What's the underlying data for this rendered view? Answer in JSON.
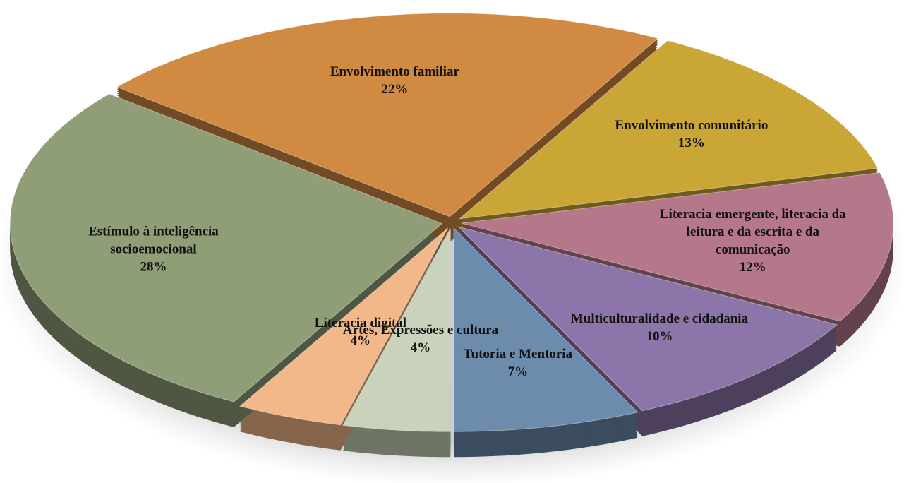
{
  "chart_data": {
    "type": "pie",
    "categories": [
      "Artes, Expressões e cultura",
      "Literacia digital",
      "Estímulo à inteligência socioemocional",
      "Envolvimento familiar",
      "Envolvimento comunitário",
      "Literacia emergente, literacia da leitura e da escrita e da comunicação",
      "Multiculturalidade e cidadania",
      "Tutoria e Mentoria"
    ],
    "values": [
      4,
      4,
      28,
      22,
      13,
      12,
      10,
      7
    ],
    "value_labels": [
      "4%",
      "4%",
      "28%",
      "22%",
      "13%",
      "12%",
      "10%",
      "7%"
    ],
    "colors": [
      "#c9d3bb",
      "#f3b889",
      "#909e78",
      "#d08a42",
      "#c9a635",
      "#b4788a",
      "#8c75a8",
      "#6d8bab"
    ]
  }
}
